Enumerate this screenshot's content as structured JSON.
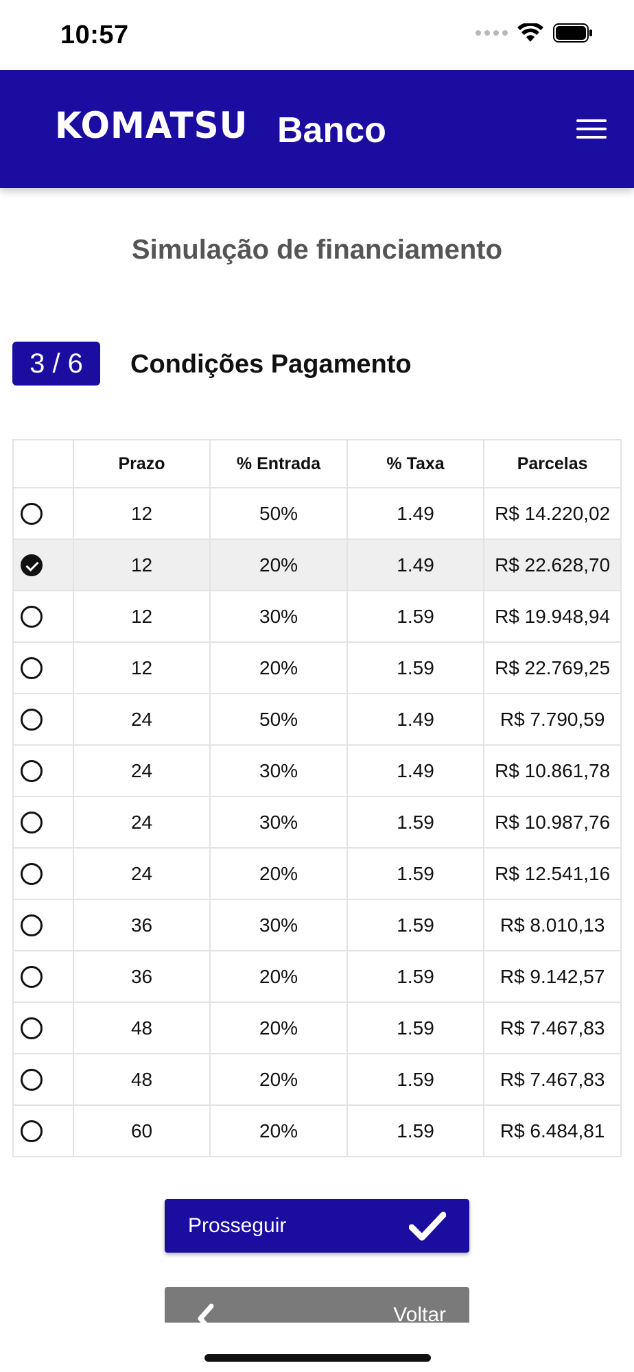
{
  "status_bar": {
    "time": "10:57"
  },
  "header": {
    "brand": "KOMATSU",
    "subtitle": "Banco"
  },
  "page": {
    "title": "Simulação de financiamento"
  },
  "step": {
    "badge": "3 / 6",
    "title": "Condições Pagamento"
  },
  "table": {
    "headers": [
      "",
      "Prazo",
      "% Entrada",
      "% Taxa",
      "Parcelas"
    ],
    "rows": [
      {
        "selected": false,
        "prazo": "12",
        "entrada": "50%",
        "taxa": "1.49",
        "parcelas": "R$ 14.220,02"
      },
      {
        "selected": true,
        "prazo": "12",
        "entrada": "20%",
        "taxa": "1.49",
        "parcelas": "R$ 22.628,70"
      },
      {
        "selected": false,
        "prazo": "12",
        "entrada": "30%",
        "taxa": "1.59",
        "parcelas": "R$ 19.948,94"
      },
      {
        "selected": false,
        "prazo": "12",
        "entrada": "20%",
        "taxa": "1.59",
        "parcelas": "R$ 22.769,25"
      },
      {
        "selected": false,
        "prazo": "24",
        "entrada": "50%",
        "taxa": "1.49",
        "parcelas": "R$ 7.790,59"
      },
      {
        "selected": false,
        "prazo": "24",
        "entrada": "30%",
        "taxa": "1.49",
        "parcelas": "R$ 10.861,78"
      },
      {
        "selected": false,
        "prazo": "24",
        "entrada": "30%",
        "taxa": "1.59",
        "parcelas": "R$ 10.987,76"
      },
      {
        "selected": false,
        "prazo": "24",
        "entrada": "20%",
        "taxa": "1.59",
        "parcelas": "R$ 12.541,16"
      },
      {
        "selected": false,
        "prazo": "36",
        "entrada": "30%",
        "taxa": "1.59",
        "parcelas": "R$ 8.010,13"
      },
      {
        "selected": false,
        "prazo": "36",
        "entrada": "20%",
        "taxa": "1.59",
        "parcelas": "R$ 9.142,57"
      },
      {
        "selected": false,
        "prazo": "48",
        "entrada": "20%",
        "taxa": "1.59",
        "parcelas": "R$ 7.467,83"
      },
      {
        "selected": false,
        "prazo": "48",
        "entrada": "20%",
        "taxa": "1.59",
        "parcelas": "R$ 7.467,83"
      },
      {
        "selected": false,
        "prazo": "60",
        "entrada": "20%",
        "taxa": "1.59",
        "parcelas": "R$ 6.484,81"
      }
    ]
  },
  "buttons": {
    "proceed": "Prosseguir",
    "back": "Voltar"
  },
  "colors": {
    "brand": "#1a0da0",
    "back_button": "#7a7a7a",
    "selected_row": "#efefef"
  },
  "icons": {
    "menu": "hamburger-menu-icon",
    "proceed": "checkmark-icon",
    "back": "chevron-left-icon",
    "radio_on": "radio-checked-icon",
    "radio_off": "radio-unchecked-icon"
  }
}
